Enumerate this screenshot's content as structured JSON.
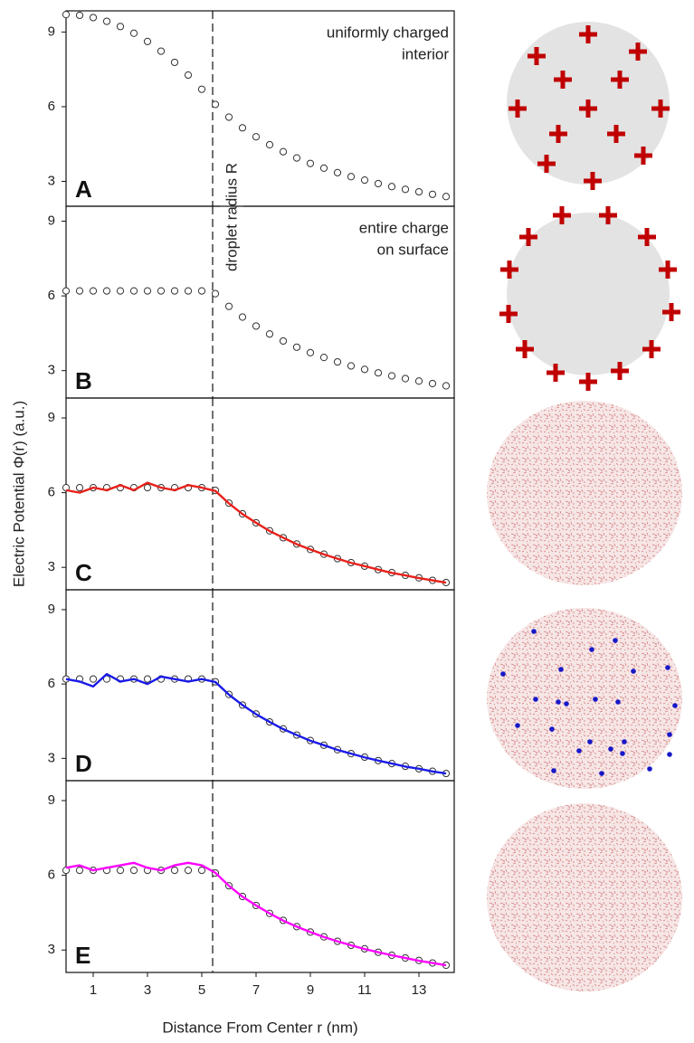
{
  "chart_data": [
    {
      "type": "line",
      "label": "A",
      "annotation": [
        "uniformly charged",
        "interior"
      ],
      "radius_label": "droplet radius R",
      "radius": 5.4,
      "x": [
        0,
        0.5,
        1,
        1.5,
        2,
        2.5,
        3,
        3.5,
        4,
        4.5,
        5,
        5.5,
        6,
        6.5,
        7,
        7.5,
        8,
        8.5,
        9,
        9.5,
        10,
        10.5,
        11,
        11.5,
        12,
        12.5,
        13,
        13.5,
        14
      ],
      "xlim": [
        0,
        14.3
      ],
      "ylim": [
        2,
        9.85
      ],
      "yticks": [
        3,
        6,
        9
      ],
      "series": [
        {
          "color": "#333333",
          "marker": "circle",
          "values": [
            9.7,
            9.67,
            9.58,
            9.43,
            9.22,
            8.95,
            8.62,
            8.23,
            7.78,
            7.27,
            6.7,
            6.09,
            5.58,
            5.15,
            4.79,
            4.47,
            4.19,
            3.94,
            3.72,
            3.53,
            3.35,
            3.19,
            3.05,
            2.91,
            2.79,
            2.68,
            2.58,
            2.48,
            2.39
          ]
        }
      ]
    },
    {
      "type": "line",
      "label": "B",
      "annotation": [
        "entire charge",
        "on surface"
      ],
      "radius": 5.4,
      "x": [
        0,
        0.5,
        1,
        1.5,
        2,
        2.5,
        3,
        3.5,
        4,
        4.5,
        5,
        5.5,
        6,
        6.5,
        7,
        7.5,
        8,
        8.5,
        9,
        9.5,
        10,
        10.5,
        11,
        11.5,
        12,
        12.5,
        13,
        13.5,
        14
      ],
      "xlim": [
        0,
        14.3
      ],
      "ylim": [
        1.9,
        9.6
      ],
      "yticks": [
        3,
        6,
        9
      ],
      "series": [
        {
          "color": "#333333",
          "marker": "circle",
          "values": [
            6.2,
            6.2,
            6.2,
            6.2,
            6.2,
            6.2,
            6.2,
            6.2,
            6.2,
            6.2,
            6.2,
            6.09,
            5.58,
            5.15,
            4.79,
            4.47,
            4.19,
            3.94,
            3.72,
            3.53,
            3.35,
            3.19,
            3.05,
            2.91,
            2.79,
            2.68,
            2.58,
            2.48,
            2.39
          ]
        }
      ]
    },
    {
      "type": "line",
      "label": "C",
      "ylabel": "Electric Potential Φ(r)  (a.u.)",
      "radius": 5.4,
      "x": [
        0,
        0.5,
        1,
        1.5,
        2,
        2.5,
        3,
        3.5,
        4,
        4.5,
        5,
        5.5,
        6,
        6.5,
        7,
        7.5,
        8,
        8.5,
        9,
        9.5,
        10,
        10.5,
        11,
        11.5,
        12,
        12.5,
        13,
        13.5,
        14
      ],
      "xlim": [
        0,
        14.3
      ],
      "ylim": [
        2.1,
        9.8
      ],
      "yticks": [
        3,
        6,
        9
      ],
      "series": [
        {
          "color": "#333333",
          "marker": "circle",
          "values": [
            6.2,
            6.2,
            6.2,
            6.2,
            6.2,
            6.2,
            6.2,
            6.2,
            6.2,
            6.2,
            6.2,
            6.09,
            5.58,
            5.15,
            4.79,
            4.47,
            4.19,
            3.94,
            3.72,
            3.53,
            3.35,
            3.19,
            3.05,
            2.91,
            2.79,
            2.68,
            2.58,
            2.48,
            2.39
          ]
        },
        {
          "color": "#e8201a",
          "marker": "line",
          "values": [
            6.1,
            6.0,
            6.2,
            6.1,
            6.3,
            6.1,
            6.4,
            6.2,
            6.1,
            6.3,
            6.2,
            6.07,
            5.57,
            5.14,
            4.79,
            4.46,
            4.19,
            3.93,
            3.72,
            3.52,
            3.35,
            3.18,
            3.05,
            2.91,
            2.78,
            2.68,
            2.57,
            2.48,
            2.39
          ]
        }
      ]
    },
    {
      "type": "line",
      "label": "D",
      "radius": 5.4,
      "x": [
        0,
        0.5,
        1,
        1.5,
        2,
        2.5,
        3,
        3.5,
        4,
        4.5,
        5,
        5.5,
        6,
        6.5,
        7,
        7.5,
        8,
        8.5,
        9,
        9.5,
        10,
        10.5,
        11,
        11.5,
        12,
        12.5,
        13,
        13.5,
        14
      ],
      "xlim": [
        0,
        14.3
      ],
      "ylim": [
        2.1,
        9.8
      ],
      "yticks": [
        3,
        6,
        9
      ],
      "series": [
        {
          "color": "#333333",
          "marker": "circle",
          "values": [
            6.2,
            6.2,
            6.2,
            6.2,
            6.2,
            6.2,
            6.2,
            6.2,
            6.2,
            6.2,
            6.2,
            6.09,
            5.58,
            5.15,
            4.79,
            4.47,
            4.19,
            3.94,
            3.72,
            3.53,
            3.35,
            3.19,
            3.05,
            2.91,
            2.79,
            2.68,
            2.58,
            2.48,
            2.39
          ]
        },
        {
          "color": "#1a1ae8",
          "marker": "line",
          "values": [
            6.2,
            6.1,
            5.9,
            6.4,
            6.1,
            6.2,
            6.0,
            6.3,
            6.2,
            6.1,
            6.2,
            6.08,
            5.57,
            5.15,
            4.78,
            4.47,
            4.18,
            3.94,
            3.71,
            3.53,
            3.34,
            3.19,
            3.04,
            2.91,
            2.79,
            2.67,
            2.58,
            2.47,
            2.39
          ]
        }
      ]
    },
    {
      "type": "line",
      "label": "E",
      "xlabel": "Distance From Center r (nm)",
      "radius": 5.4,
      "x": [
        0,
        0.5,
        1,
        1.5,
        2,
        2.5,
        3,
        3.5,
        4,
        4.5,
        5,
        5.5,
        6,
        6.5,
        7,
        7.5,
        8,
        8.5,
        9,
        9.5,
        10,
        10.5,
        11,
        11.5,
        12,
        12.5,
        13,
        13.5,
        14
      ],
      "xlim": [
        0,
        14.3
      ],
      "ylim": [
        2.1,
        9.8
      ],
      "yticks": [
        3,
        6,
        9
      ],
      "xticks": [
        1,
        3,
        5,
        7,
        9,
        11,
        13
      ],
      "series": [
        {
          "color": "#333333",
          "marker": "circle",
          "values": [
            6.2,
            6.2,
            6.2,
            6.2,
            6.2,
            6.2,
            6.2,
            6.2,
            6.2,
            6.2,
            6.2,
            6.09,
            5.58,
            5.15,
            4.79,
            4.47,
            4.19,
            3.94,
            3.72,
            3.53,
            3.35,
            3.19,
            3.05,
            2.91,
            2.79,
            2.68,
            2.58,
            2.48,
            2.39
          ]
        },
        {
          "color": "#ff00ff",
          "marker": "line",
          "values": [
            6.3,
            6.4,
            6.2,
            6.3,
            6.4,
            6.5,
            6.3,
            6.2,
            6.4,
            6.5,
            6.4,
            6.1,
            5.58,
            5.14,
            4.79,
            4.47,
            4.18,
            3.94,
            3.72,
            3.52,
            3.35,
            3.19,
            3.04,
            2.91,
            2.79,
            2.68,
            2.57,
            2.48,
            2.39
          ]
        }
      ]
    }
  ]
}
